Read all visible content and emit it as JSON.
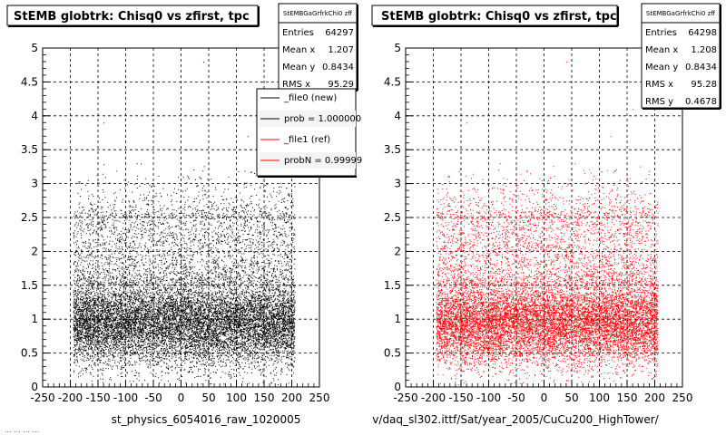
{
  "chart_data": [
    {
      "type": "scatter",
      "title": "StEMB globtrk: Chisq0 vs zfirst, tpc",
      "xlabel": "",
      "ylabel": "",
      "xlim": [
        -250,
        250
      ],
      "ylim": [
        0,
        5
      ],
      "xticks": [
        "-250",
        "-200",
        "-150",
        "-100",
        "-50",
        "0",
        "50",
        "100",
        "150",
        "200",
        "250"
      ],
      "yticks": [
        "0",
        "0.5",
        "1",
        "1.5",
        "2",
        "2.5",
        "3",
        "3.5",
        "4",
        "4.5",
        "5"
      ],
      "grid": true,
      "marker_color": "#000000",
      "x_range_populated": [
        -195,
        205
      ],
      "stats": {
        "header": "StEMBGaGrfrkChi0 zff",
        "rows": [
          {
            "label": "Entries",
            "value": "64297"
          },
          {
            "label": "Mean x",
            "value": "1.207"
          },
          {
            "label": "Mean y",
            "value": "0.8434"
          },
          {
            "label": "RMS x",
            "value": "95.29"
          }
        ]
      },
      "legend": {
        "placement": "top-right",
        "entries": [
          {
            "label": "_file0 (new)",
            "color": "#000000"
          },
          {
            "label": "prob = 1.000000",
            "color": "#000000"
          },
          {
            "label": "_file1 (ref)",
            "color": "#ff0000"
          },
          {
            "label": "probN = 0.99999",
            "color": "#ff0000"
          }
        ]
      },
      "footer": "st_physics_6054016_raw_1020005",
      "footer_small": "... ... ... ..."
    },
    {
      "type": "scatter",
      "title": "StEMB globtrk: Chisq0 vs zfirst, tpc",
      "xlabel": "",
      "ylabel": "",
      "xlim": [
        -250,
        250
      ],
      "ylim": [
        0,
        5
      ],
      "xticks": [
        "-250",
        "-200",
        "-150",
        "-100",
        "-50",
        "0",
        "50",
        "100",
        "150",
        "200",
        "250"
      ],
      "yticks": [
        "0",
        "0.5",
        "1",
        "1.5",
        "2",
        "2.5",
        "3",
        "3.5",
        "4",
        "4.5",
        "5"
      ],
      "grid": true,
      "marker_color": "#ff0000",
      "x_range_populated": [
        -195,
        205
      ],
      "stats": {
        "header": "StEMBGaGrfrkChi0 zff",
        "rows": [
          {
            "label": "Entries",
            "value": "64298"
          },
          {
            "label": "Mean x",
            "value": "1.208"
          },
          {
            "label": "Mean y",
            "value": "0.8434"
          },
          {
            "label": "RMS x",
            "value": "95.28"
          },
          {
            "label": "RMS y",
            "value": "0.4678"
          }
        ]
      },
      "footer": "v/daq_sl302.ittf/Sat/year_2005/CuCu200_HighTower/"
    }
  ]
}
